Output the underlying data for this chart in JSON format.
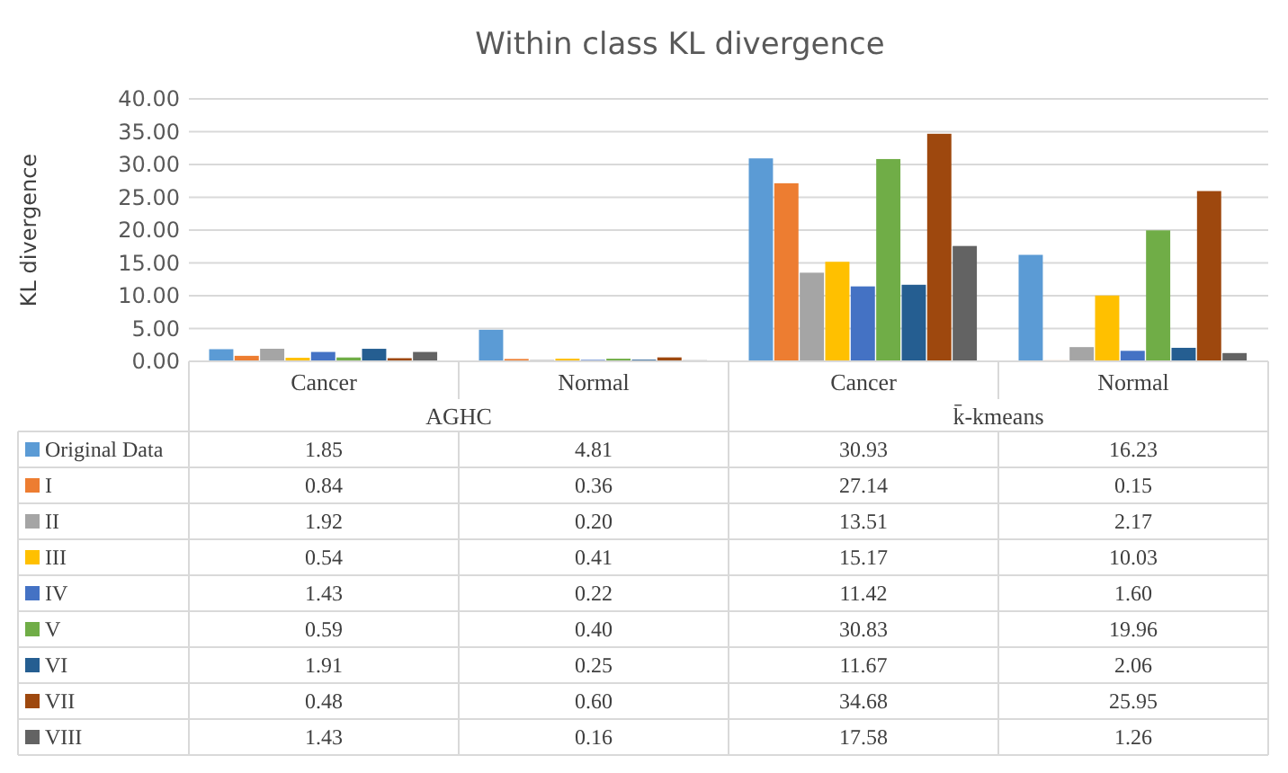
{
  "chart_data": {
    "type": "bar",
    "title": "Within class KL divergence",
    "ylabel": "KL divergence",
    "categories": [
      "Cancer",
      "Normal",
      "Cancer",
      "Normal"
    ],
    "annotations": [
      "AGHC",
      "k̄-kmeans"
    ],
    "series": [
      {
        "name": "Original Data",
        "color": "#5b9bd5",
        "values": [
          1.85,
          4.81,
          30.93,
          16.23
        ],
        "value_labels": [
          "1.85",
          "4.81",
          "30.93",
          "16.23"
        ]
      },
      {
        "name": "I",
        "color": "#ed7d31",
        "values": [
          0.84,
          0.36,
          27.14,
          0.15
        ],
        "value_labels": [
          "0.84",
          "0.36",
          "27.14",
          "0.15"
        ]
      },
      {
        "name": "II",
        "color": "#a5a5a5",
        "values": [
          1.92,
          0.2,
          13.51,
          2.17
        ],
        "value_labels": [
          "1.92",
          "0.20",
          "13.51",
          "2.17"
        ]
      },
      {
        "name": "III",
        "color": "#ffc000",
        "values": [
          0.54,
          0.41,
          15.17,
          10.03
        ],
        "value_labels": [
          "0.54",
          "0.41",
          "15.17",
          "10.03"
        ]
      },
      {
        "name": "IV",
        "color": "#4472c4",
        "values": [
          1.43,
          0.22,
          11.42,
          1.6
        ],
        "value_labels": [
          "1.43",
          "0.22",
          "11.42",
          "1.60"
        ]
      },
      {
        "name": "V",
        "color": "#70ad47",
        "values": [
          0.59,
          0.4,
          30.83,
          19.96
        ],
        "value_labels": [
          "0.59",
          "0.40",
          "30.83",
          "19.96"
        ]
      },
      {
        "name": "VI",
        "color": "#255e91",
        "values": [
          1.91,
          0.25,
          11.67,
          2.06
        ],
        "value_labels": [
          "1.91",
          "0.25",
          "11.67",
          "2.06"
        ]
      },
      {
        "name": "VII",
        "color": "#9e480e",
        "values": [
          0.48,
          0.6,
          34.68,
          25.95
        ],
        "value_labels": [
          "0.48",
          "0.60",
          "34.68",
          "25.95"
        ]
      },
      {
        "name": "VIII",
        "color": "#636363",
        "values": [
          1.43,
          0.16,
          17.58,
          1.26
        ],
        "value_labels": [
          "1.43",
          "0.16",
          "17.58",
          "1.26"
        ]
      }
    ],
    "ylim": [
      0,
      40
    ],
    "yticks": [
      {
        "value": 0,
        "label": "0.00"
      },
      {
        "value": 5,
        "label": "5.00"
      },
      {
        "value": 10,
        "label": "10.00"
      },
      {
        "value": 15,
        "label": "15.00"
      },
      {
        "value": 20,
        "label": "20.00"
      },
      {
        "value": 25,
        "label": "25.00"
      },
      {
        "value": 30,
        "label": "30.00"
      },
      {
        "value": 35,
        "label": "35.00"
      },
      {
        "value": 40,
        "label": "40.00"
      }
    ],
    "grid": "y",
    "legend": "bottom"
  }
}
